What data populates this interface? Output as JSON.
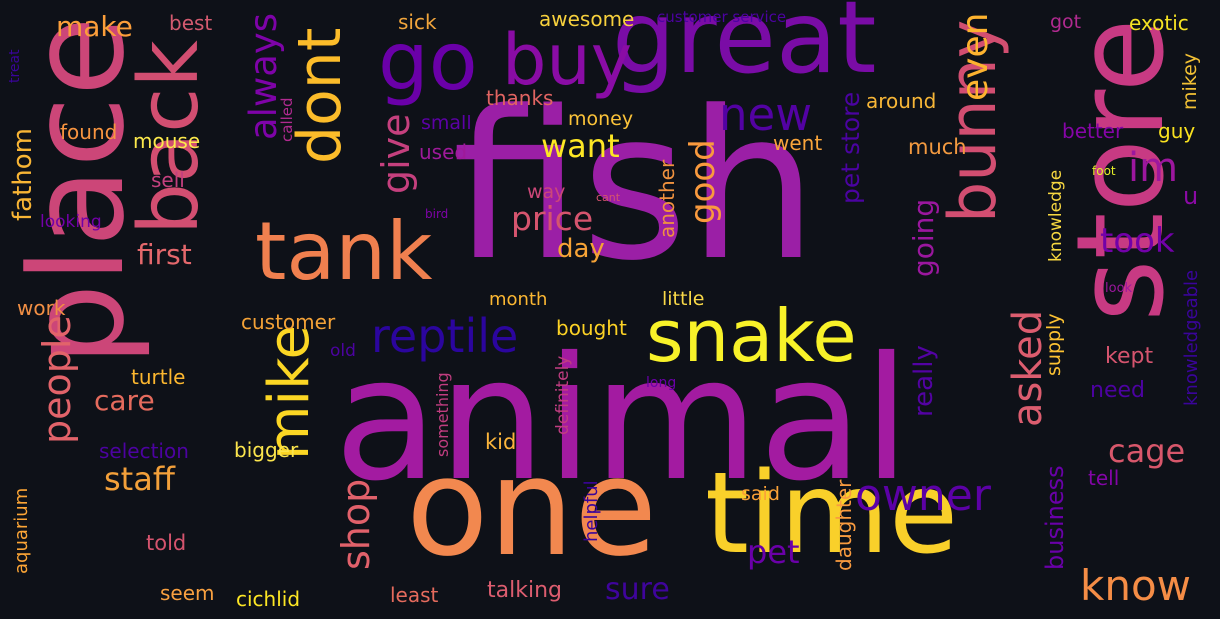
{
  "cloud": {
    "words": [
      {
        "text": "fish",
        "color": "#9b1fa6"
      },
      {
        "text": "animal",
        "color": "#a31ba1"
      },
      {
        "text": "store",
        "color": "#c83a83"
      },
      {
        "text": "place",
        "color": "#cc4678"
      },
      {
        "text": "one",
        "color": "#f2884f"
      },
      {
        "text": "time",
        "color": "#f9d02a"
      },
      {
        "text": "great",
        "color": "#7a0ca6"
      },
      {
        "text": "tank",
        "color": "#f0804f"
      },
      {
        "text": "back",
        "color": "#d24e71"
      },
      {
        "text": "buy",
        "color": "#8a0ca5"
      },
      {
        "text": "go",
        "color": "#6a00a8"
      },
      {
        "text": "snake",
        "color": "#f8f229"
      },
      {
        "text": "mike",
        "color": "#fbd624"
      },
      {
        "text": "dont",
        "color": "#fcbc2a"
      },
      {
        "text": "bunny",
        "color": "#d24e71"
      },
      {
        "text": "reptile",
        "color": "#2b059e"
      },
      {
        "text": "people",
        "color": "#e2636a"
      },
      {
        "text": "know",
        "color": "#f58d46"
      },
      {
        "text": "owner",
        "color": "#5c01a6"
      },
      {
        "text": "asked",
        "color": "#dc5d6f"
      },
      {
        "text": "pet",
        "color": "#6a00a8"
      },
      {
        "text": "shop",
        "color": "#e1616b"
      },
      {
        "text": "new",
        "color": "#5302a3"
      },
      {
        "text": "always",
        "color": "#7e03a8"
      },
      {
        "text": "im",
        "color": "#9c179e"
      },
      {
        "text": "even",
        "color": "#fdb32f"
      },
      {
        "text": "give",
        "color": "#c5407e"
      },
      {
        "text": "took",
        "color": "#7201a8"
      },
      {
        "text": "cage",
        "color": "#d8576b"
      },
      {
        "text": "staff",
        "color": "#f3a03a"
      },
      {
        "text": "good",
        "color": "#f99a3e"
      },
      {
        "text": "price",
        "color": "#d5546e"
      },
      {
        "text": "want",
        "color": "#fde724"
      },
      {
        "text": "make",
        "color": "#fb9e3a"
      },
      {
        "text": "first",
        "color": "#e4686c"
      },
      {
        "text": "care",
        "color": "#e56b5d"
      },
      {
        "text": "sure",
        "color": "#3f049c"
      },
      {
        "text": "fathom",
        "color": "#f8b535"
      },
      {
        "text": "day",
        "color": "#f6a336"
      },
      {
        "text": "going",
        "color": "#9b179f"
      },
      {
        "text": "pet store",
        "color": "#4b03a1"
      },
      {
        "text": "really",
        "color": "#5302a3"
      },
      {
        "text": "business",
        "color": "#6900a8"
      },
      {
        "text": "u",
        "color": "#8b0aa5"
      },
      {
        "text": "awesome",
        "color": "#f7d13d"
      },
      {
        "text": "sick",
        "color": "#f1a53c"
      },
      {
        "text": "best",
        "color": "#d35a6f"
      },
      {
        "text": "got",
        "color": "#b12a90"
      },
      {
        "text": "exotic",
        "color": "#f5e323"
      },
      {
        "text": "customer service",
        "color": "#4c02a1"
      },
      {
        "text": "mikey",
        "color": "#f1c034"
      },
      {
        "text": "treat",
        "color": "#3a049a"
      },
      {
        "text": "found",
        "color": "#f89540"
      },
      {
        "text": "mouse",
        "color": "#fce94c"
      },
      {
        "text": "thanks",
        "color": "#e16462"
      },
      {
        "text": "around",
        "color": "#f7b637"
      },
      {
        "text": "small",
        "color": "#5c01a6"
      },
      {
        "text": "money",
        "color": "#fbc339"
      },
      {
        "text": "better",
        "color": "#8605a7"
      },
      {
        "text": "guy",
        "color": "#f8e11f"
      },
      {
        "text": "used",
        "color": "#9e1a9a"
      },
      {
        "text": "went",
        "color": "#f8a43b"
      },
      {
        "text": "much",
        "color": "#f39a40"
      },
      {
        "text": "sell",
        "color": "#c3407e"
      },
      {
        "text": "way",
        "color": "#cc4778"
      },
      {
        "text": "cant",
        "color": "#d5546e"
      },
      {
        "text": "foot",
        "color": "#e6f029"
      },
      {
        "text": "called",
        "color": "#b12a90"
      },
      {
        "text": "looking",
        "color": "#7301a8"
      },
      {
        "text": "bird",
        "color": "#7e03a8"
      },
      {
        "text": "another",
        "color": "#f0923f"
      },
      {
        "text": "knowledge",
        "color": "#f8d840"
      },
      {
        "text": "work",
        "color": "#f18f44"
      },
      {
        "text": "customer",
        "color": "#f4a237"
      },
      {
        "text": "month",
        "color": "#fbb732"
      },
      {
        "text": "bought",
        "color": "#fcd225"
      },
      {
        "text": "little",
        "color": "#f9d948"
      },
      {
        "text": "look",
        "color": "#9c179e"
      },
      {
        "text": "old",
        "color": "#4c02a1"
      },
      {
        "text": "turtle",
        "color": "#fcb72f"
      },
      {
        "text": "long",
        "color": "#6a00a8"
      },
      {
        "text": "something",
        "color": "#c13d80"
      },
      {
        "text": "definitely",
        "color": "#c03d81"
      },
      {
        "text": "supply",
        "color": "#fcc232"
      },
      {
        "text": "knowledgeable",
        "color": "#3a049a"
      },
      {
        "text": "kept",
        "color": "#d5546e"
      },
      {
        "text": "need",
        "color": "#4c02a1"
      },
      {
        "text": "selection",
        "color": "#4c02a1"
      },
      {
        "text": "bigger",
        "color": "#fbe54d"
      },
      {
        "text": "kid",
        "color": "#fbb53c"
      },
      {
        "text": "tell",
        "color": "#8405a7"
      },
      {
        "text": "aquarium",
        "color": "#fca536"
      },
      {
        "text": "helpful",
        "color": "#3a049a"
      },
      {
        "text": "said",
        "color": "#fba238"
      },
      {
        "text": "daughter",
        "color": "#f99b3f"
      },
      {
        "text": "told",
        "color": "#d5546e"
      },
      {
        "text": "seem",
        "color": "#f8a040"
      },
      {
        "text": "cichlid",
        "color": "#fde724"
      },
      {
        "text": "least",
        "color": "#e56b5d"
      },
      {
        "text": "talking",
        "color": "#dc5d6f"
      }
    ]
  }
}
